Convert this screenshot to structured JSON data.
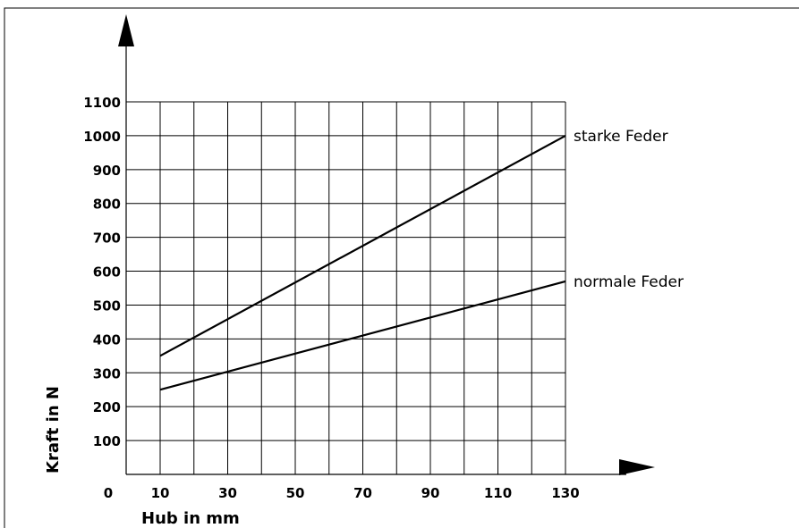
{
  "chart_data": {
    "type": "line",
    "xlabel": "Hub in mm",
    "ylabel": "Kraft in N",
    "xlim": [
      0,
      130
    ],
    "ylim": [
      0,
      1100
    ],
    "x_tick_labels": [
      "0",
      "10",
      "30",
      "50",
      "70",
      "90",
      "110",
      "130"
    ],
    "x_tick_values": [
      0,
      10,
      30,
      50,
      70,
      90,
      110,
      130
    ],
    "x_gridlines": [
      10,
      20,
      30,
      40,
      50,
      60,
      70,
      80,
      90,
      100,
      110,
      120,
      130
    ],
    "y_ticks": [
      100,
      200,
      300,
      400,
      500,
      600,
      700,
      800,
      900,
      1000,
      1100
    ],
    "grid": true,
    "series": [
      {
        "name": "starke Feder",
        "x": [
          10,
          130
        ],
        "y": [
          350,
          1000
        ]
      },
      {
        "name": "normale Feder",
        "x": [
          10,
          130
        ],
        "y": [
          250,
          570
        ]
      }
    ]
  }
}
